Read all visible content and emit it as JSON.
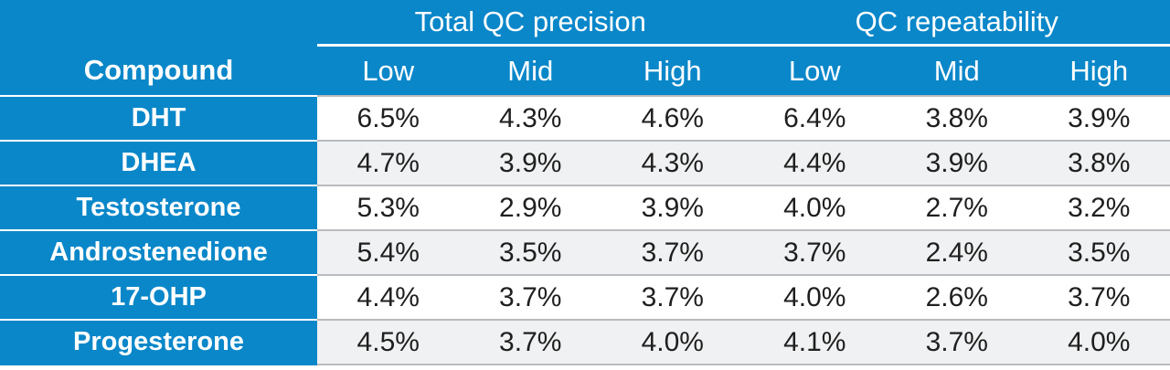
{
  "header": {
    "groups": [
      "Total QC precision",
      "QC repeatability"
    ],
    "compound_label": "Compound",
    "levels": [
      "Low",
      "Mid",
      "High",
      "Low",
      "Mid",
      "High"
    ]
  },
  "rows": [
    {
      "compound": "DHT",
      "values": [
        "6.5%",
        "4.3%",
        "4.6%",
        "6.4%",
        "3.8%",
        "3.9%"
      ]
    },
    {
      "compound": "DHEA",
      "values": [
        "4.7%",
        "3.9%",
        "4.3%",
        "4.4%",
        "3.9%",
        "3.8%"
      ]
    },
    {
      "compound": "Testosterone",
      "values": [
        "5.3%",
        "2.9%",
        "3.9%",
        "4.0%",
        "2.7%",
        "3.2%"
      ]
    },
    {
      "compound": "Androstenedione",
      "values": [
        "5.4%",
        "3.5%",
        "3.7%",
        "3.7%",
        "2.4%",
        "3.5%"
      ]
    },
    {
      "compound": "17-OHP",
      "values": [
        "4.4%",
        "3.7%",
        "3.7%",
        "4.0%",
        "2.6%",
        "3.7%"
      ]
    },
    {
      "compound": "Progesterone",
      "values": [
        "4.5%",
        "3.7%",
        "4.0%",
        "4.1%",
        "3.7%",
        "4.0%"
      ]
    }
  ],
  "colors": {
    "header_bg": "#0a87c9",
    "row_alt_bg": "#f0f1f2",
    "grid_line": "#b9bbbe"
  }
}
